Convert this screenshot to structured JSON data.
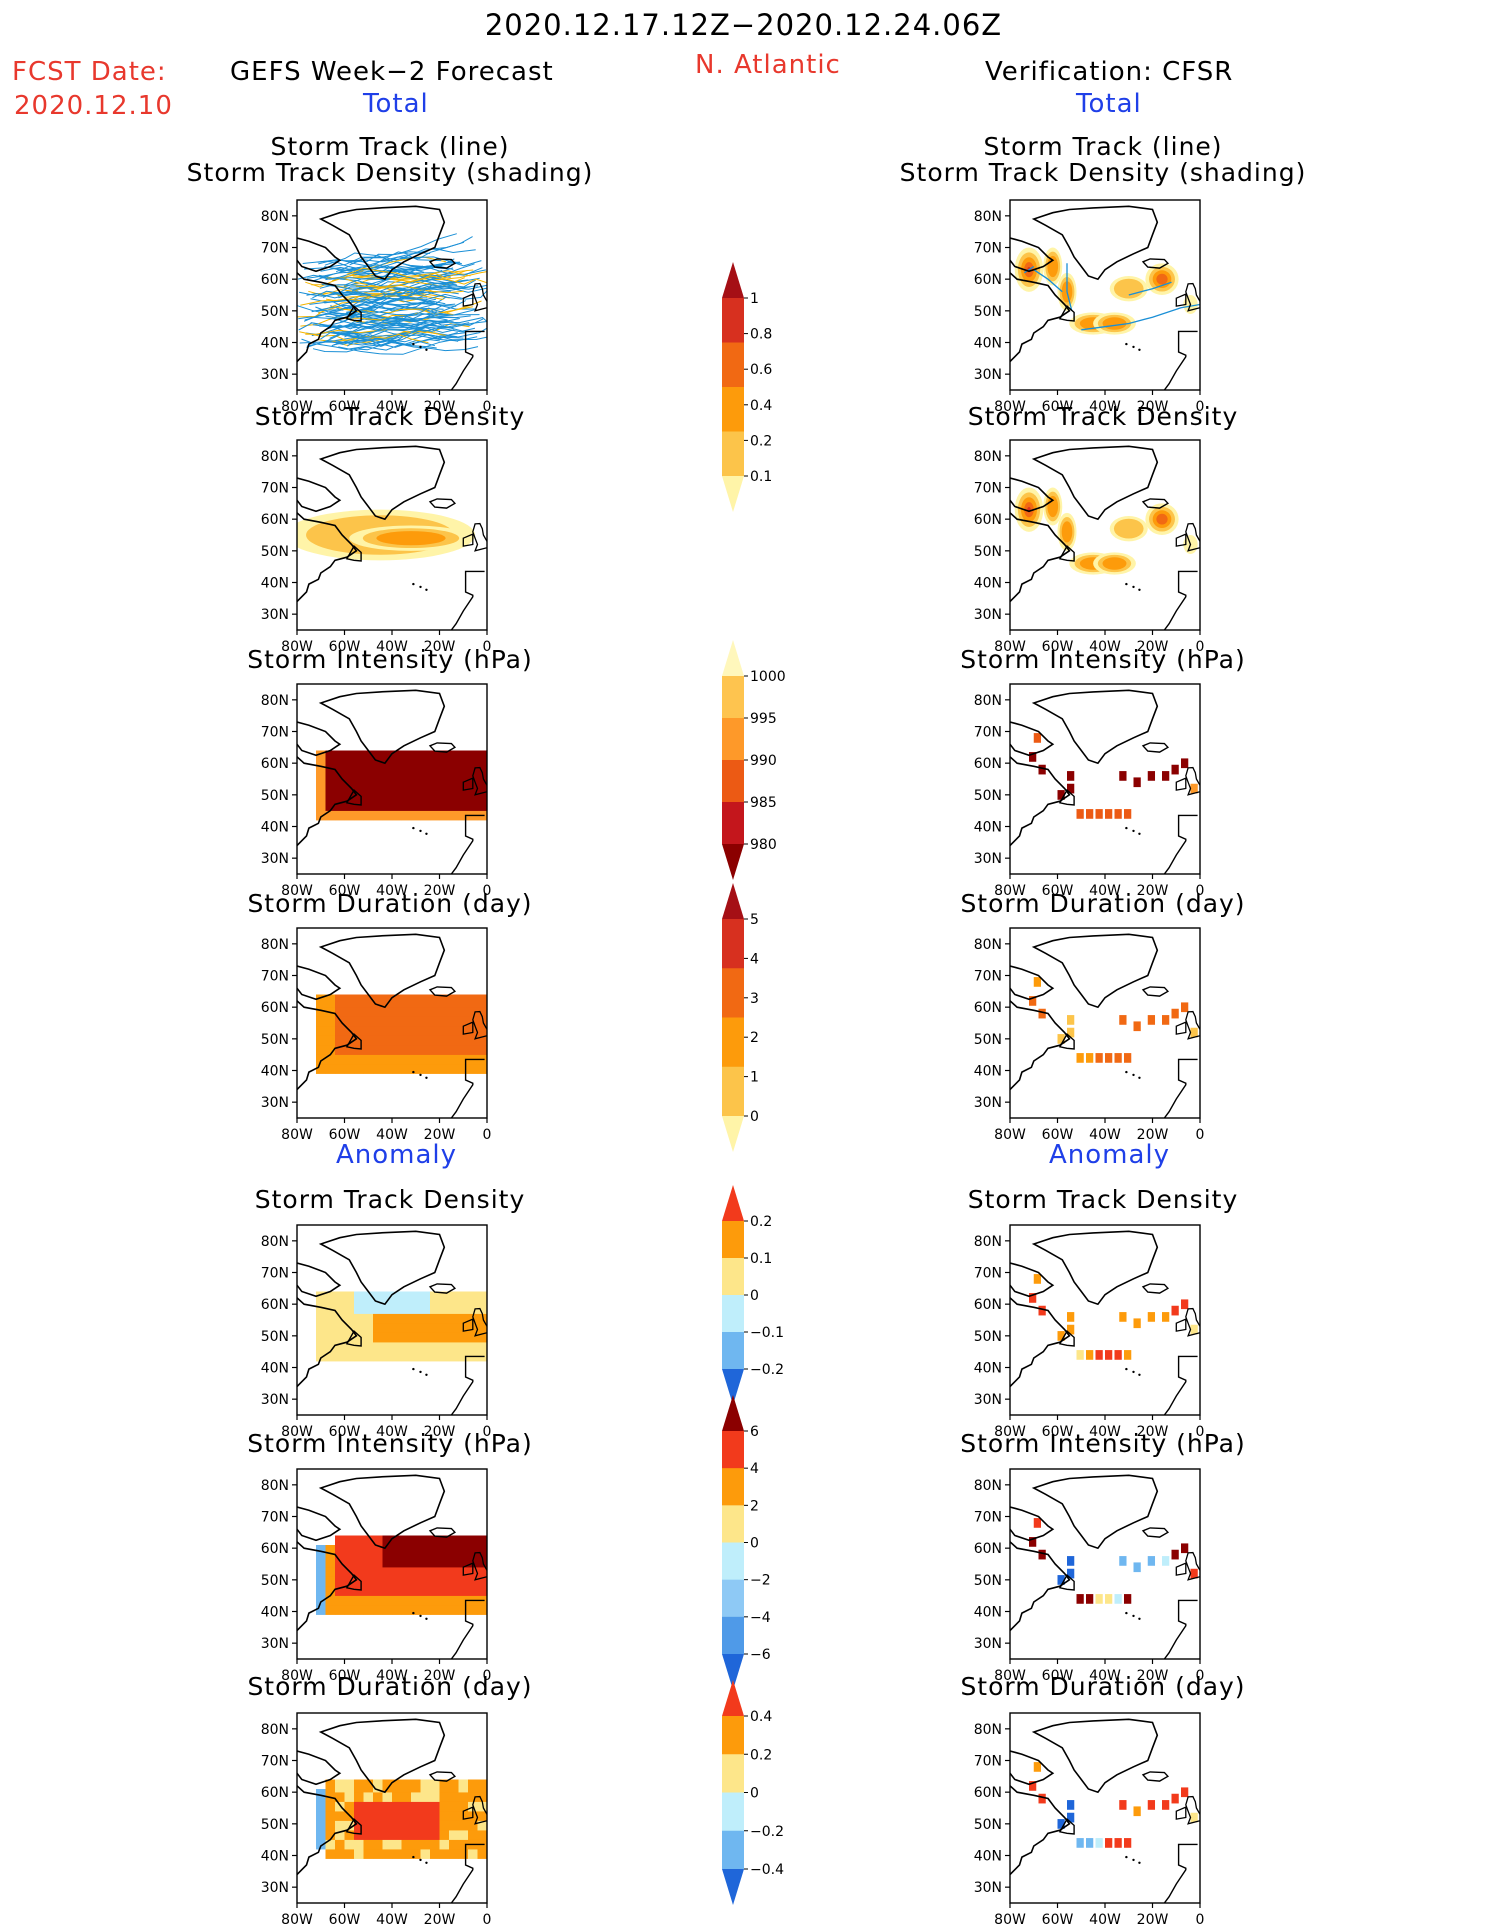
{
  "header": {
    "date_range": "2020.12.17.12Z−2020.12.24.06Z",
    "fcst_label": "FCST Date:",
    "fcst_date": "2020.12.10",
    "region": "N. Atlantic",
    "left_title": "GEFS Week−2 Forecast",
    "right_title": "Verification: CFSR",
    "total_label": "Total",
    "anomaly_label": "Anomaly"
  },
  "panel_titles": {
    "track_line": "Storm Track (line)",
    "track_shading": "Storm Track Density (shading)",
    "density": "Storm Track Density",
    "intensity": "Storm Intensity (hPa)",
    "duration": "Storm Duration (day)"
  },
  "map_axis": {
    "lat_labels": [
      "80N",
      "70N",
      "60N",
      "50N",
      "40N",
      "30N"
    ],
    "lon_labels": [
      "80W",
      "60W",
      "40W",
      "20W",
      "0"
    ]
  },
  "colorbars": [
    {
      "id": "density",
      "labels": [
        "1",
        "0.8",
        "0.6",
        "0.4",
        "0.2",
        "0.1"
      ],
      "colors": [
        "#a50f15",
        "#d7301f",
        "#f16913",
        "#fd9b0b",
        "#fcc44a",
        "#fff4a8"
      ]
    },
    {
      "id": "intensity",
      "labels": [
        "1000",
        "995",
        "990",
        "985",
        "980"
      ],
      "colors": [
        "#fff7bc",
        "#fec44f",
        "#fe9929",
        "#ec5a14",
        "#c4161c",
        "#8b0000"
      ]
    },
    {
      "id": "duration",
      "labels": [
        "5",
        "4",
        "3",
        "2",
        "1",
        "0"
      ],
      "colors": [
        "#a50f15",
        "#d7301f",
        "#f16913",
        "#fd9b0b",
        "#fcc44a",
        "#fff4a8"
      ]
    },
    {
      "id": "density-anom",
      "labels": [
        "0.2",
        "0.1",
        "0",
        "−0.1",
        "−0.2"
      ],
      "colors": [
        "#f23a1c",
        "#fd9b0b",
        "#fde68a",
        "#bfeefb",
        "#6fb7f0",
        "#1f66d9"
      ]
    },
    {
      "id": "intensity-anom",
      "labels": [
        "6",
        "4",
        "2",
        "0",
        "−2",
        "−4",
        "−6"
      ],
      "colors": [
        "#8b0000",
        "#f23a1c",
        "#fd9b0b",
        "#fde68a",
        "#bfeefb",
        "#8ec9f5",
        "#4f9ae8",
        "#1f66d9"
      ]
    },
    {
      "id": "duration-anom",
      "labels": [
        "0.4",
        "0.2",
        "0",
        "−0.2",
        "−0.4"
      ],
      "colors": [
        "#f23a1c",
        "#fd9b0b",
        "#fde68a",
        "#bfeefb",
        "#6fb7f0",
        "#1f66d9"
      ]
    }
  ],
  "chart_data": [
    {
      "type": "heatmap",
      "title": "Storm Track (line) Storm Track Density (shading)",
      "source": "GEFS Week−2 Forecast",
      "field": "track-lines",
      "xlim": [
        -80,
        0
      ],
      "ylim": [
        25,
        85
      ]
    },
    {
      "type": "heatmap",
      "title": "Storm Track (line) Storm Track Density (shading)",
      "source": "Verification: CFSR",
      "field": "track-lines",
      "xlim": [
        -80,
        0
      ],
      "ylim": [
        25,
        85
      ]
    },
    {
      "type": "heatmap",
      "title": "Storm Track Density",
      "source": "GEFS Week−2 Forecast",
      "field": "density",
      "xlim": [
        -80,
        0
      ],
      "ylim": [
        25,
        85
      ]
    },
    {
      "type": "heatmap",
      "title": "Storm Track Density",
      "source": "Verification: CFSR",
      "field": "density",
      "xlim": [
        -80,
        0
      ],
      "ylim": [
        25,
        85
      ]
    },
    {
      "type": "heatmap",
      "title": "Storm Intensity (hPa)",
      "source": "GEFS Week−2 Forecast",
      "field": "intensity",
      "xlim": [
        -80,
        0
      ],
      "ylim": [
        25,
        85
      ]
    },
    {
      "type": "heatmap",
      "title": "Storm Intensity (hPa)",
      "source": "Verification: CFSR",
      "field": "intensity",
      "xlim": [
        -80,
        0
      ],
      "ylim": [
        25,
        85
      ]
    },
    {
      "type": "heatmap",
      "title": "Storm Duration (day)",
      "source": "GEFS Week−2 Forecast",
      "field": "duration",
      "xlim": [
        -80,
        0
      ],
      "ylim": [
        25,
        85
      ]
    },
    {
      "type": "heatmap",
      "title": "Storm Duration (day)",
      "source": "Verification: CFSR",
      "field": "duration",
      "xlim": [
        -80,
        0
      ],
      "ylim": [
        25,
        85
      ]
    },
    {
      "type": "heatmap",
      "title": "Storm Track Density",
      "source": "GEFS Week−2 Forecast",
      "field": "density-anomaly",
      "xlim": [
        -80,
        0
      ],
      "ylim": [
        25,
        85
      ]
    },
    {
      "type": "heatmap",
      "title": "Storm Track Density",
      "source": "Verification: CFSR",
      "field": "density-anomaly",
      "xlim": [
        -80,
        0
      ],
      "ylim": [
        25,
        85
      ]
    },
    {
      "type": "heatmap",
      "title": "Storm Intensity (hPa)",
      "source": "GEFS Week−2 Forecast",
      "field": "intensity-anomaly",
      "xlim": [
        -80,
        0
      ],
      "ylim": [
        25,
        85
      ]
    },
    {
      "type": "heatmap",
      "title": "Storm Intensity (hPa)",
      "source": "Verification: CFSR",
      "field": "intensity-anomaly",
      "xlim": [
        -80,
        0
      ],
      "ylim": [
        25,
        85
      ]
    },
    {
      "type": "heatmap",
      "title": "Storm Duration (day)",
      "source": "GEFS Week−2 Forecast",
      "field": "duration-anomaly",
      "xlim": [
        -80,
        0
      ],
      "ylim": [
        25,
        85
      ]
    },
    {
      "type": "heatmap",
      "title": "Storm Duration (day)",
      "source": "Verification: CFSR",
      "field": "duration-anomaly",
      "xlim": [
        -80,
        0
      ],
      "ylim": [
        25,
        85
      ]
    }
  ]
}
